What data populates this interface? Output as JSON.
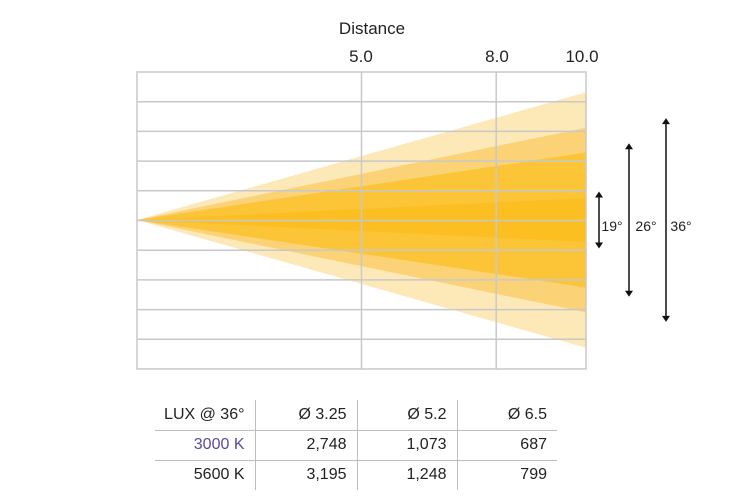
{
  "diagram": {
    "top_axis_title": "Distance",
    "distances": [
      {
        "value": 5.0,
        "label": "5.0"
      },
      {
        "value": 8.0,
        "label": "8.0"
      },
      {
        "value": 10.0,
        "label": "10.0"
      }
    ],
    "beam_angles": [
      {
        "angle": 36,
        "label": "36°",
        "color": "#fde8b8"
      },
      {
        "angle": 26,
        "label": "26°",
        "color": "#fcd277"
      },
      {
        "angle": 19,
        "label": "19°",
        "color": "#fcc437"
      }
    ],
    "core_color": "#fcbf22",
    "grid_color": "#c8c8c8"
  },
  "lux_table": {
    "headers": [
      "LUX @ 36°",
      "Ø 3.25",
      "Ø 5.2",
      "Ø 6.5"
    ],
    "rows": [
      {
        "label": "3000 K",
        "label_color": "#5b4a9a",
        "values": [
          "2,748",
          "1,073",
          "687"
        ]
      },
      {
        "label": "5600 K",
        "label_color": "#222222",
        "values": [
          "3,195",
          "1,248",
          "799"
        ]
      }
    ]
  }
}
